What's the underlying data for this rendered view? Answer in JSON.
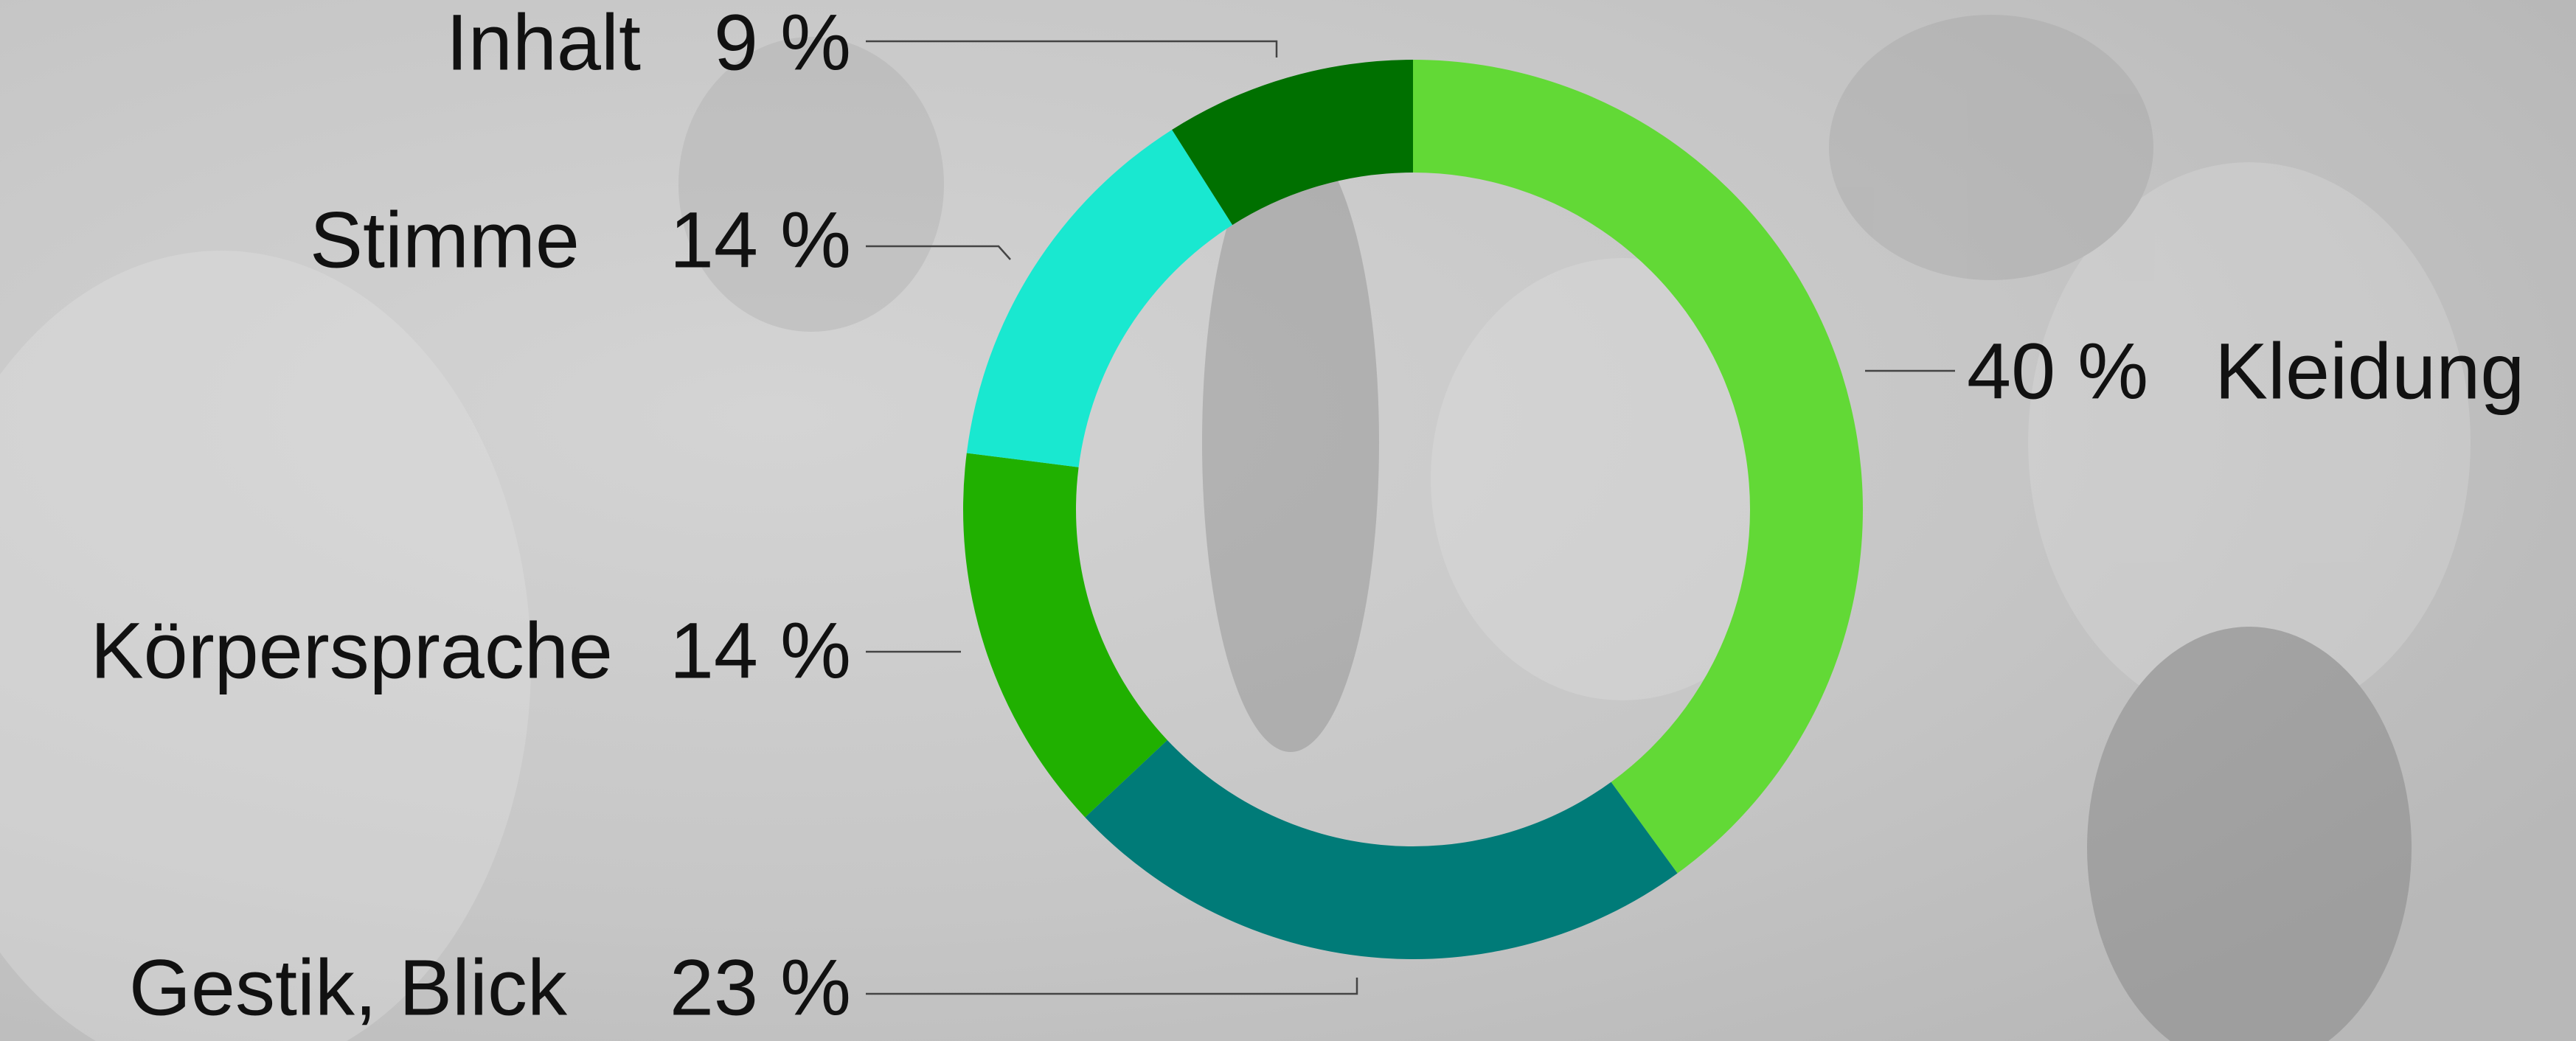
{
  "chart_data": {
    "type": "pie",
    "donut": true,
    "categories": [
      "Kleidung",
      "Gestik, Blick",
      "Körpersprache",
      "Stimme",
      "Inhalt"
    ],
    "values": [
      40,
      23,
      14,
      14,
      9
    ],
    "value_labels": [
      "40 %",
      "23 %",
      "14 %",
      "14 %",
      "9 %"
    ],
    "colors": [
      "#62d936",
      "#007b78",
      "#20b000",
      "#19e8d0",
      "#007000"
    ]
  }
}
